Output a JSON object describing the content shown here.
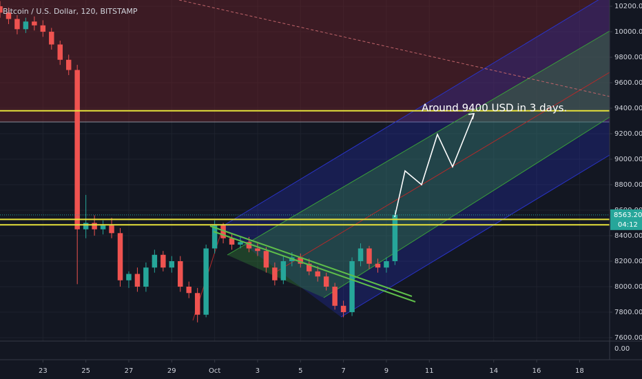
{
  "chart_data": {
    "type": "candlestick",
    "title": "Bitcoin / U.S. Dollar, 120, BITSTAMP",
    "annotation": "Around 9400 USD in 3 days.",
    "up_color": "#26a69a",
    "down_color": "#ef5350",
    "x": [
      -2,
      -1.6,
      -1.2,
      -0.8,
      -0.4,
      0,
      0.4,
      0.8,
      1.2,
      1.6,
      2,
      2.4,
      2.8,
      3.2,
      3.6,
      4,
      4.4,
      4.8,
      5.2,
      5.6,
      6,
      6.4,
      6.8,
      7.2,
      7.6,
      8,
      8.4,
      8.8,
      9.2,
      9.6,
      10,
      10.4,
      10.8,
      11.2,
      11.6,
      12,
      12.4,
      12.8,
      13.2,
      13.6,
      14,
      14.4,
      14.8,
      15.2,
      15.6,
      16,
      16.4
    ],
    "open": [
      10200,
      10150,
      10100,
      10020,
      10080,
      10050,
      10000,
      9900,
      9780,
      9700,
      8450,
      8500,
      8450,
      8480,
      8420,
      8050,
      8100,
      8000,
      8150,
      8250,
      8150,
      8200,
      8000,
      7950,
      7780,
      8300,
      8480,
      8380,
      8330,
      8350,
      8300,
      8280,
      8150,
      8050,
      8200,
      8230,
      8180,
      8120,
      8080,
      8000,
      7850,
      7800,
      8200,
      8300,
      8180,
      8150,
      8200
    ],
    "high": [
      10240,
      10190,
      10130,
      10110,
      10120,
      10090,
      10030,
      9930,
      9820,
      9740,
      8720,
      8560,
      8520,
      8540,
      8460,
      8120,
      8150,
      8190,
      8290,
      8280,
      8240,
      8240,
      8040,
      7990,
      8330,
      8520,
      8500,
      8420,
      8390,
      8390,
      8340,
      8310,
      8190,
      8240,
      8270,
      8260,
      8220,
      8160,
      8110,
      8030,
      7890,
      8230,
      8340,
      8320,
      8220,
      8230,
      8600
    ],
    "low": [
      10110,
      10060,
      9980,
      9990,
      10010,
      9960,
      9860,
      9740,
      9660,
      8020,
      8380,
      8400,
      8410,
      8380,
      8000,
      7990,
      7960,
      7960,
      8110,
      8120,
      8110,
      7960,
      7910,
      7720,
      7760,
      8260,
      8340,
      8290,
      8300,
      8270,
      8240,
      8110,
      8010,
      8020,
      8160,
      8150,
      8090,
      8040,
      7970,
      7820,
      7760,
      7770,
      8160,
      8140,
      8110,
      8110,
      8170
    ],
    "close": [
      10150,
      10100,
      10020,
      10080,
      10050,
      10000,
      9900,
      9780,
      9700,
      8450,
      8500,
      8450,
      8480,
      8420,
      8050,
      8100,
      8000,
      8150,
      8250,
      8150,
      8200,
      8000,
      7950,
      7780,
      8300,
      8480,
      8380,
      8330,
      8350,
      8300,
      8280,
      8150,
      8050,
      8200,
      8230,
      8180,
      8120,
      8080,
      8000,
      7850,
      7800,
      8200,
      8300,
      8180,
      8150,
      8200,
      8563
    ],
    "levels": [
      9380,
      8528,
      8485
    ],
    "level_color": "#e8e23a",
    "last_price": {
      "value": 8563.2,
      "label": "8563.20"
    },
    "countdown": "04:12",
    "xlim": [
      -2,
      26.4
    ],
    "xticks": [
      {
        "value": 0,
        "label": "23"
      },
      {
        "value": 2,
        "label": "25"
      },
      {
        "value": 4,
        "label": "27"
      },
      {
        "value": 6,
        "label": "29"
      },
      {
        "value": 8,
        "label": "Oct"
      },
      {
        "value": 10,
        "label": "3"
      },
      {
        "value": 12,
        "label": "5"
      },
      {
        "value": 14,
        "label": "7"
      },
      {
        "value": 16,
        "label": "9"
      },
      {
        "value": 18,
        "label": "11"
      },
      {
        "value": 21,
        "label": "14"
      },
      {
        "value": 23,
        "label": "16"
      },
      {
        "value": 25,
        "label": "18"
      }
    ],
    "ylim": [
      7573,
      10249
    ],
    "yticks": [
      {
        "value": 7600,
        "label": "7600.00"
      },
      {
        "value": 7800,
        "label": "7800.00"
      },
      {
        "value": 8000,
        "label": "8000.00"
      },
      {
        "value": 8200,
        "label": "8200.00"
      },
      {
        "value": 8400,
        "label": "8400.00"
      },
      {
        "value": 8600,
        "label": "8600.00"
      },
      {
        "value": 8800,
        "label": "8800.00"
      },
      {
        "value": 9000,
        "label": "9000.00"
      },
      {
        "value": 9200,
        "label": "9200.00"
      },
      {
        "value": 9400,
        "label": "9400.00"
      },
      {
        "value": 9600,
        "label": "9600.00"
      },
      {
        "value": 9800,
        "label": "9800.00"
      },
      {
        "value": 10000,
        "label": "10000.00"
      },
      {
        "value": 10200,
        "label": "10200.00"
      }
    ],
    "lower_pane_tick": {
      "value": 0,
      "label": "0.00"
    },
    "grid": true
  }
}
